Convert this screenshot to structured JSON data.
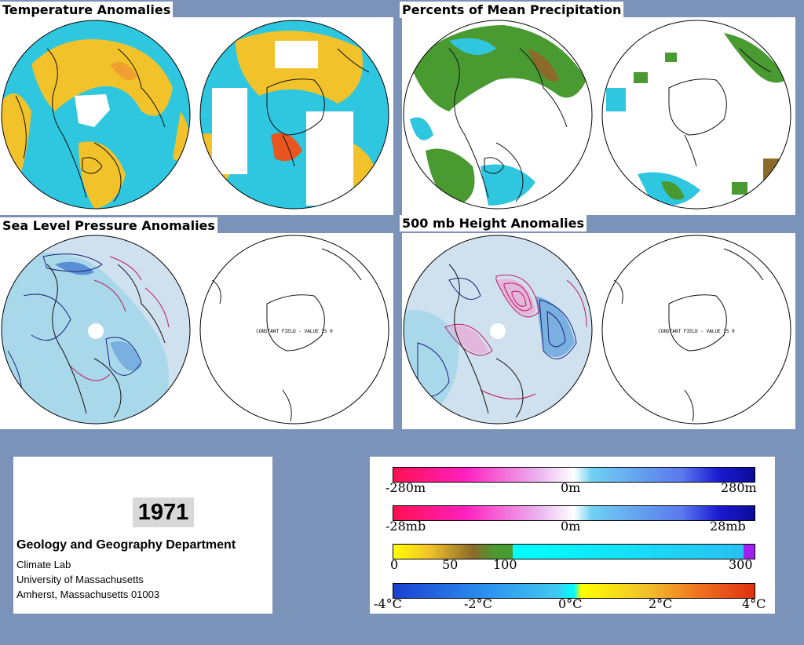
{
  "panels": {
    "temperature": {
      "title": "Temperature Anomalies"
    },
    "precipitation": {
      "title": "Percents of Mean Precipitation"
    },
    "slp": {
      "title": "Sea Level Pressure Anomalies",
      "constant_note": "CONSTANT FIELD - VALUE IS 0"
    },
    "height": {
      "title": "500 mb Height Anomalies",
      "constant_note": "CONSTANT FIELD - VALUE IS 0"
    }
  },
  "info": {
    "year": "1971",
    "department": "Geology and Geography Department",
    "lines": [
      "Climate Lab",
      "University of Massachusetts",
      "Amherst, Massachusetts 01003"
    ]
  },
  "legend": {
    "height_scale": {
      "min": "-280m",
      "mid": "0m",
      "max": "280m"
    },
    "slp_scale": {
      "min": "-28mb",
      "mid": "0m",
      "max": "28mb"
    },
    "precip_scale": {
      "t0": "0",
      "t1": "50",
      "t2": "100",
      "t3": "300"
    },
    "temp_scale": {
      "t0": "-4°C",
      "t1": "-2°C",
      "t2": "0°C",
      "t3": "2°C",
      "t4": "4°C"
    }
  },
  "colors": {
    "background": "#7b93b8",
    "warm": "#f2c22a",
    "cool": "#2fc6e0",
    "hot": "#e8551e",
    "negative_contour": "#1a237e",
    "positive_contour": "#c2185b",
    "precip_green": "#4a9a32",
    "light_blue_fill": "#cfe0ee"
  }
}
